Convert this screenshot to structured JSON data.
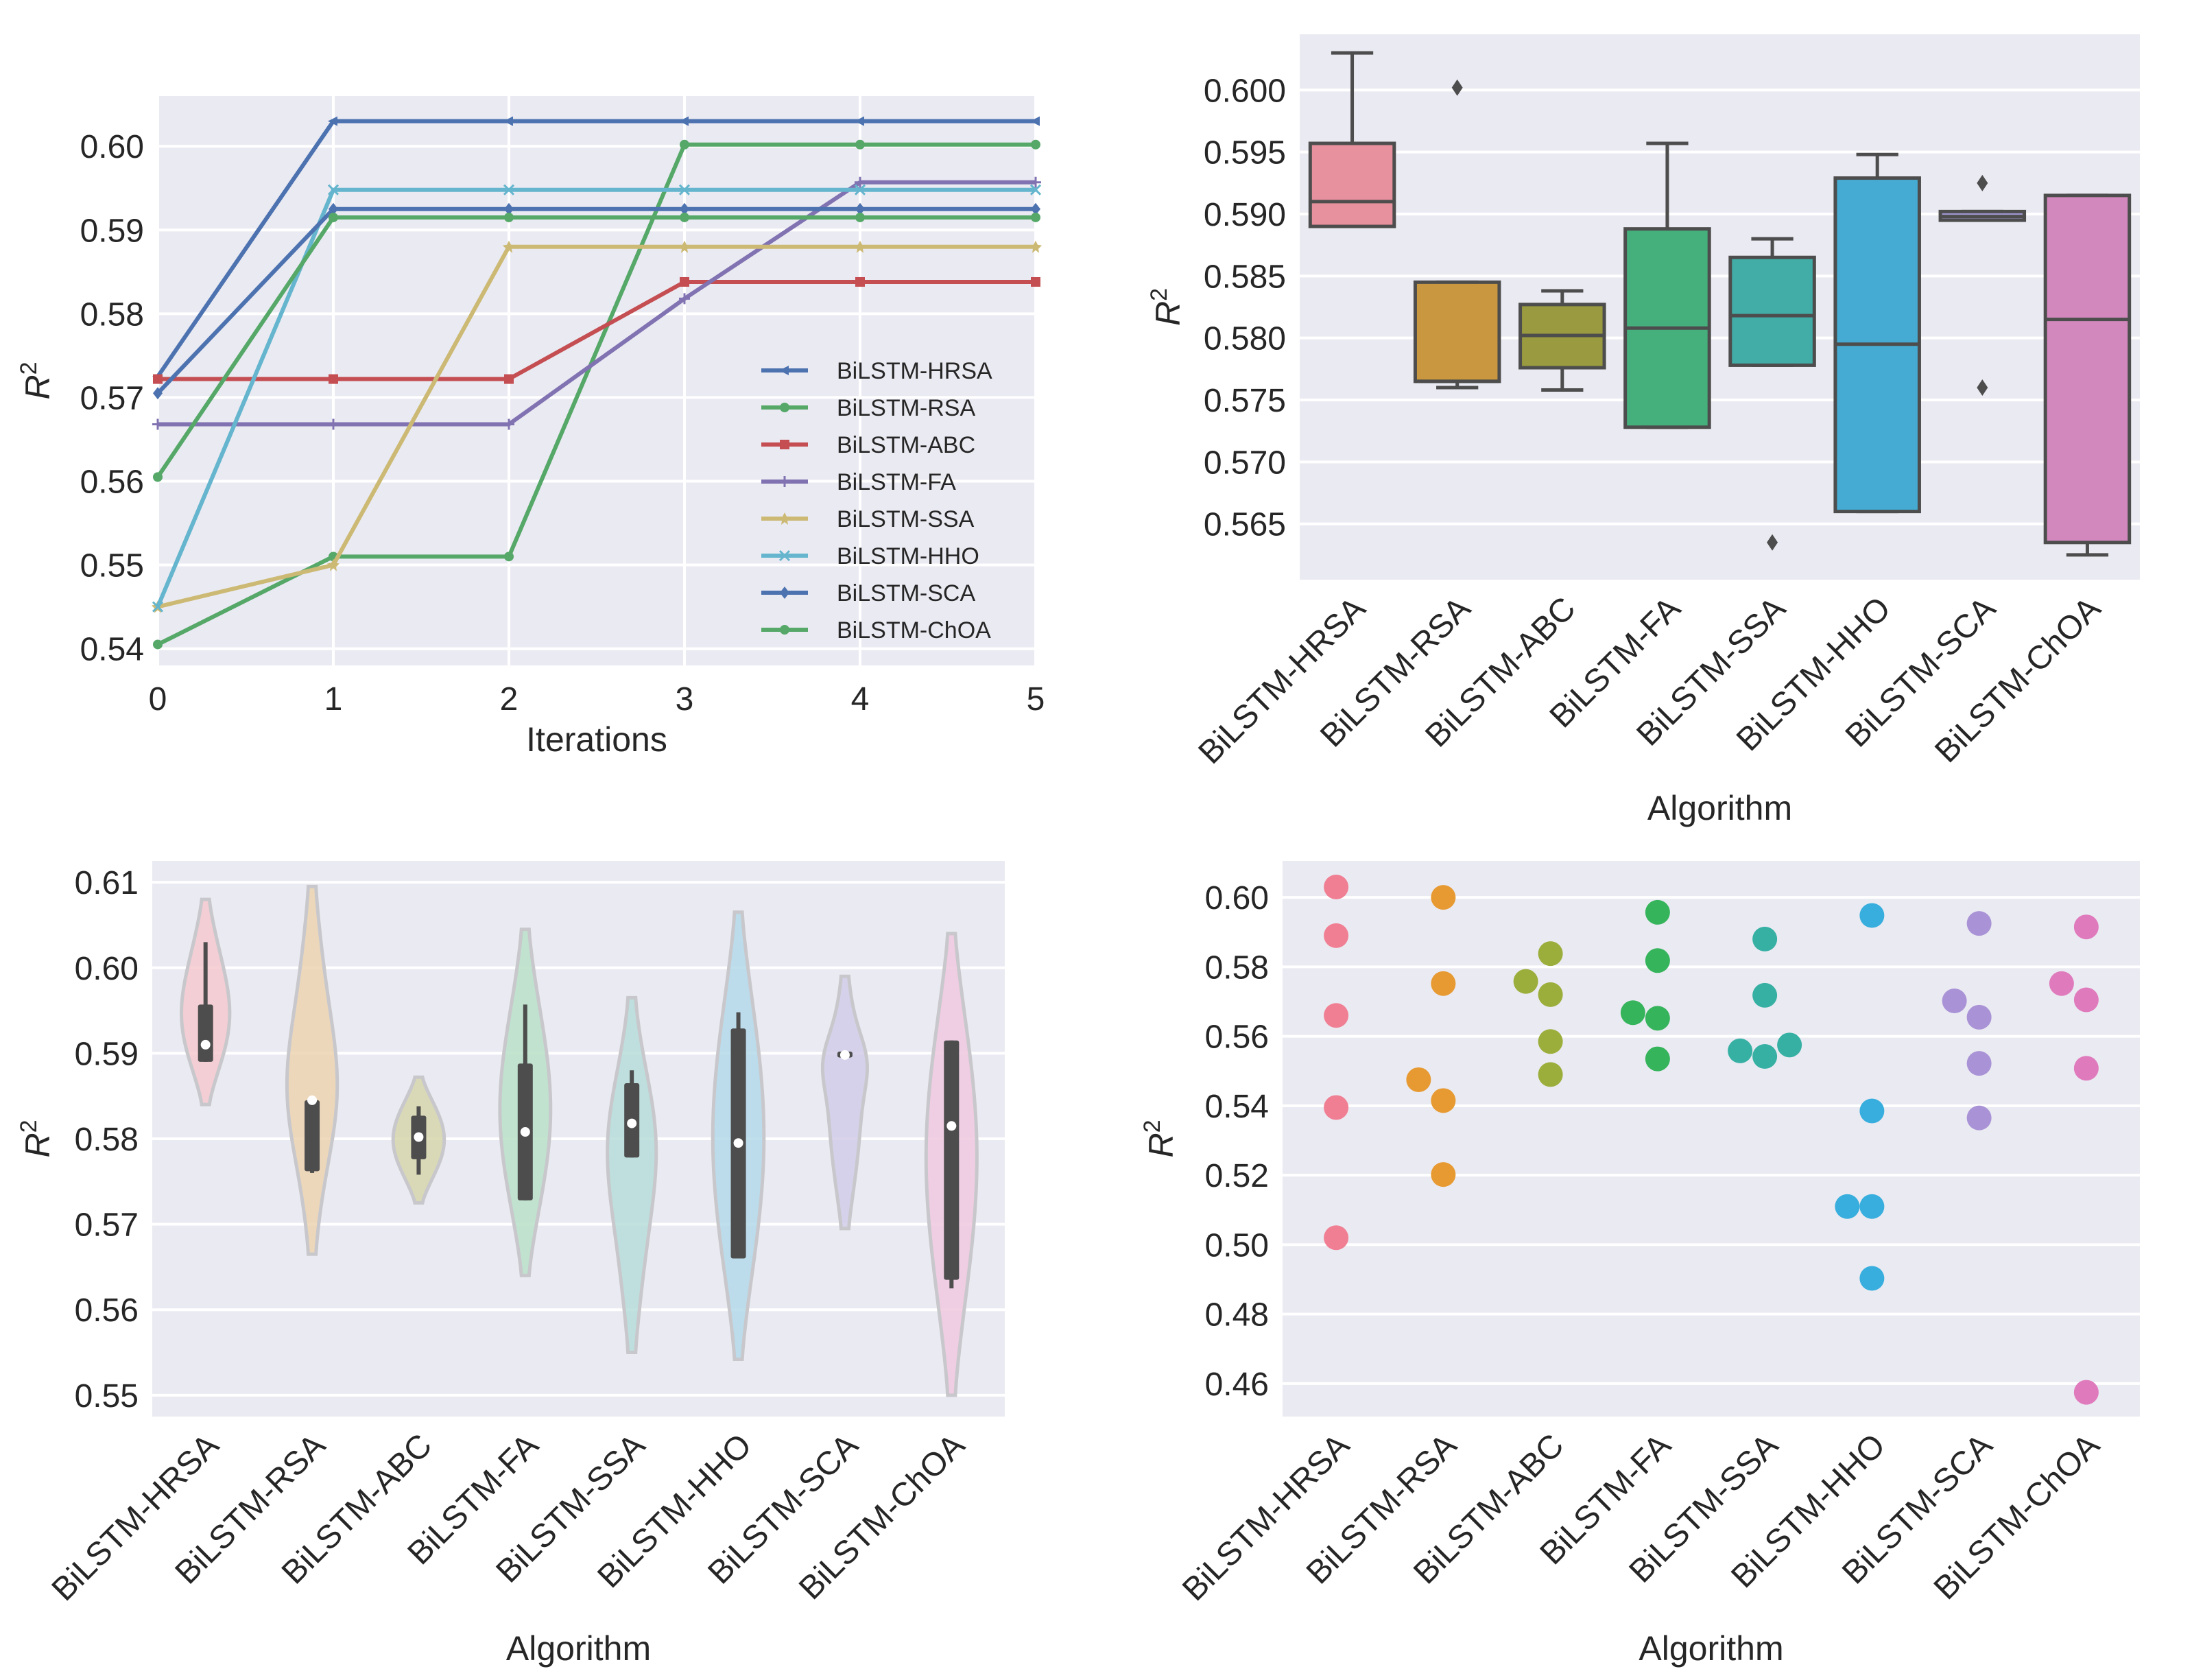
{
  "chart_data": [
    {
      "type": "line",
      "title": "",
      "xlabel": "Iterations",
      "ylabel": "R2",
      "x": [
        0,
        1,
        2,
        3,
        4,
        5
      ],
      "xlim": [
        0,
        5
      ],
      "ylim": [
        0.538,
        0.606
      ],
      "xticks": [
        "0",
        "1",
        "2",
        "3",
        "4",
        "5"
      ],
      "yticks": [
        "0.54",
        "0.55",
        "0.56",
        "0.57",
        "0.58",
        "0.59",
        "0.60"
      ],
      "legend_position": "center-right",
      "series": [
        {
          "name": "BiLSTM-HRSA",
          "color": "#4c72b0",
          "marker": "tri",
          "values": [
            0.5725,
            0.603,
            0.603,
            0.603,
            0.603,
            0.603
          ]
        },
        {
          "name": "BiLSTM-RSA",
          "color": "#55a868",
          "marker": "dot",
          "values": [
            0.5405,
            0.551,
            0.551,
            0.6002,
            0.6002,
            0.6002
          ]
        },
        {
          "name": "BiLSTM-ABC",
          "color": "#c44e52",
          "marker": "square",
          "values": [
            0.5722,
            0.5722,
            0.5722,
            0.5838,
            0.5838,
            0.5838
          ]
        },
        {
          "name": "BiLSTM-FA",
          "color": "#8172b2",
          "marker": "plus",
          "values": [
            0.5668,
            0.5668,
            0.5668,
            0.5818,
            0.5957,
            0.5957
          ]
        },
        {
          "name": "BiLSTM-SSA",
          "color": "#ccb974",
          "marker": "star",
          "values": [
            0.545,
            0.55,
            0.588,
            0.588,
            0.588,
            0.588
          ]
        },
        {
          "name": "BiLSTM-HHO",
          "color": "#64b5cd",
          "marker": "x",
          "values": [
            0.545,
            0.5948,
            0.5948,
            0.5948,
            0.5948,
            0.5948
          ]
        },
        {
          "name": "BiLSTM-SCA",
          "color": "#4c72b0",
          "marker": "diamond",
          "values": [
            0.5705,
            0.5925,
            0.5925,
            0.5925,
            0.5925,
            0.5925
          ]
        },
        {
          "name": "BiLSTM-ChOA",
          "color": "#55a868",
          "marker": "hex",
          "values": [
            0.5605,
            0.5915,
            0.5915,
            0.5915,
            0.5915,
            0.5915
          ]
        }
      ]
    },
    {
      "type": "box",
      "title": "",
      "xlabel": "Algorithm",
      "ylabel": "R2",
      "ylim": [
        0.5605,
        0.6045
      ],
      "yticks": [
        "0.565",
        "0.570",
        "0.575",
        "0.580",
        "0.585",
        "0.590",
        "0.595",
        "0.600"
      ],
      "categories": [
        "BiLSTM-HRSA",
        "BiLSTM-RSA",
        "BiLSTM-ABC",
        "BiLSTM-FA",
        "BiLSTM-SSA",
        "BiLSTM-HHO",
        "BiLSTM-SCA",
        "BiLSTM-ChOA"
      ],
      "colors": [
        "#e8919e",
        "#c9973f",
        "#9a9a40",
        "#45b07c",
        "#41ada6",
        "#46abd2",
        "#9f96d2",
        "#d388bd"
      ],
      "boxes": [
        {
          "q1": 0.589,
          "median": 0.591,
          "q3": 0.5957,
          "whisker_low": 0.589,
          "whisker_high": 0.603,
          "outliers": []
        },
        {
          "q1": 0.5765,
          "median": 0.5765,
          "q3": 0.5845,
          "whisker_low": 0.576,
          "whisker_high": 0.5845,
          "outliers": [
            0.6002
          ]
        },
        {
          "q1": 0.5776,
          "median": 0.5802,
          "q3": 0.5827,
          "whisker_low": 0.5758,
          "whisker_high": 0.5838,
          "outliers": []
        },
        {
          "q1": 0.5728,
          "median": 0.5808,
          "q3": 0.5888,
          "whisker_low": 0.5728,
          "whisker_high": 0.5957,
          "outliers": []
        },
        {
          "q1": 0.5778,
          "median": 0.5818,
          "q3": 0.5865,
          "whisker_low": 0.5778,
          "whisker_high": 0.588,
          "outliers": [
            0.5635
          ]
        },
        {
          "q1": 0.566,
          "median": 0.5795,
          "q3": 0.5929,
          "whisker_low": 0.566,
          "whisker_high": 0.5948,
          "outliers": []
        },
        {
          "q1": 0.5895,
          "median": 0.5898,
          "q3": 0.5902,
          "whisker_low": 0.5895,
          "whisker_high": 0.5902,
          "outliers": [
            0.5925,
            0.576
          ]
        },
        {
          "q1": 0.5635,
          "median": 0.5815,
          "q3": 0.5915,
          "whisker_low": 0.5625,
          "whisker_high": 0.5915,
          "outliers": []
        }
      ]
    },
    {
      "type": "violin",
      "title": "",
      "xlabel": "Algorithm",
      "ylabel": "R2",
      "ylim": [
        0.5475,
        0.6125
      ],
      "yticks": [
        "0.55",
        "0.56",
        "0.57",
        "0.58",
        "0.59",
        "0.60",
        "0.61"
      ],
      "categories": [
        "BiLSTM-HRSA",
        "BiLSTM-RSA",
        "BiLSTM-ABC",
        "BiLSTM-FA",
        "BiLSTM-SSA",
        "BiLSTM-HHO",
        "BiLSTM-SCA",
        "BiLSTM-ChOA"
      ],
      "colors": [
        "#f4c9cf",
        "#ecd3b2",
        "#d6d6ad",
        "#b9e0c8",
        "#b6ddd9",
        "#b4d9ea",
        "#d2cde9",
        "#f0c8df"
      ],
      "violins": [
        {
          "min": 0.584,
          "max": 0.608,
          "q1": 0.589,
          "median": 0.591,
          "q3": 0.5957,
          "whisker_low": 0.589,
          "whisker_high": 0.603
        },
        {
          "min": 0.5665,
          "max": 0.6095,
          "q1": 0.5762,
          "median": 0.5845,
          "q3": 0.5845,
          "whisker_low": 0.576,
          "whisker_high": 0.5845
        },
        {
          "min": 0.5725,
          "max": 0.5872,
          "q1": 0.5776,
          "median": 0.5802,
          "q3": 0.5827,
          "whisker_low": 0.5758,
          "whisker_high": 0.5838
        },
        {
          "min": 0.564,
          "max": 0.6045,
          "q1": 0.5728,
          "median": 0.5808,
          "q3": 0.5888,
          "whisker_low": 0.5728,
          "whisker_high": 0.5957
        },
        {
          "min": 0.555,
          "max": 0.5965,
          "q1": 0.5778,
          "median": 0.5818,
          "q3": 0.5865,
          "whisker_low": 0.5778,
          "whisker_high": 0.588
        },
        {
          "min": 0.5542,
          "max": 0.6065,
          "q1": 0.566,
          "median": 0.5795,
          "q3": 0.5929,
          "whisker_low": 0.566,
          "whisker_high": 0.5948
        },
        {
          "min": 0.5695,
          "max": 0.599,
          "q1": 0.5895,
          "median": 0.5898,
          "q3": 0.5902,
          "whisker_low": 0.5895,
          "whisker_high": 0.5902
        },
        {
          "min": 0.55,
          "max": 0.604,
          "q1": 0.5635,
          "median": 0.5815,
          "q3": 0.5915,
          "whisker_low": 0.5625,
          "whisker_high": 0.5915
        }
      ]
    },
    {
      "type": "scatter",
      "title": "",
      "xlabel": "Algorithm",
      "ylabel": "R2",
      "ylim": [
        0.4505,
        0.6105
      ],
      "yticks": [
        "0.46",
        "0.48",
        "0.50",
        "0.52",
        "0.54",
        "0.56",
        "0.58",
        "0.60"
      ],
      "categories": [
        "BiLSTM-HRSA",
        "BiLSTM-RSA",
        "BiLSTM-ABC",
        "BiLSTM-FA",
        "BiLSTM-SSA",
        "BiLSTM-HHO",
        "BiLSTM-SCA",
        "BiLSTM-ChOA"
      ],
      "colors": [
        "#f07f93",
        "#e79a31",
        "#9bae3b",
        "#36b45c",
        "#37b0a4",
        "#37aedd",
        "#a993d6",
        "#df7bbd"
      ],
      "points": [
        [
          {
            "y": 0.603,
            "off": 0
          },
          {
            "y": 0.589,
            "off": 0
          },
          {
            "y": 0.566,
            "off": 0
          },
          {
            "y": 0.5395,
            "off": 0
          },
          {
            "y": 0.502,
            "off": 0
          }
        ],
        [
          {
            "y": 0.6,
            "off": 0
          },
          {
            "y": 0.5752,
            "off": 0
          },
          {
            "y": 0.5475,
            "off": -1
          },
          {
            "y": 0.5415,
            "off": 0
          },
          {
            "y": 0.5202,
            "off": 0
          }
        ],
        [
          {
            "y": 0.5838,
            "off": 0
          },
          {
            "y": 0.5758,
            "off": -1
          },
          {
            "y": 0.572,
            "off": 0
          },
          {
            "y": 0.5585,
            "off": 0
          },
          {
            "y": 0.549,
            "off": 0
          }
        ],
        [
          {
            "y": 0.5957,
            "off": 0
          },
          {
            "y": 0.5818,
            "off": 0
          },
          {
            "y": 0.5668,
            "off": -1
          },
          {
            "y": 0.5652,
            "off": 0
          },
          {
            "y": 0.5535,
            "off": 0
          }
        ],
        [
          {
            "y": 0.588,
            "off": 0
          },
          {
            "y": 0.5718,
            "off": 0
          },
          {
            "y": 0.5558,
            "off": -1
          },
          {
            "y": 0.5542,
            "off": 0
          },
          {
            "y": 0.5575,
            "off": 1
          }
        ],
        [
          {
            "y": 0.5948,
            "off": 0
          },
          {
            "y": 0.5385,
            "off": 0
          },
          {
            "y": 0.511,
            "off": -1
          },
          {
            "y": 0.511,
            "off": 0
          },
          {
            "y": 0.4903,
            "off": 0
          }
        ],
        [
          {
            "y": 0.5925,
            "off": 0
          },
          {
            "y": 0.5702,
            "off": -1
          },
          {
            "y": 0.5655,
            "off": 0
          },
          {
            "y": 0.5522,
            "off": 0
          },
          {
            "y": 0.5365,
            "off": 0
          }
        ],
        [
          {
            "y": 0.5915,
            "off": 0
          },
          {
            "y": 0.5752,
            "off": -1
          },
          {
            "y": 0.5705,
            "off": 0
          },
          {
            "y": 0.5508,
            "off": 0
          },
          {
            "y": 0.4575,
            "off": 0
          }
        ]
      ]
    }
  ]
}
